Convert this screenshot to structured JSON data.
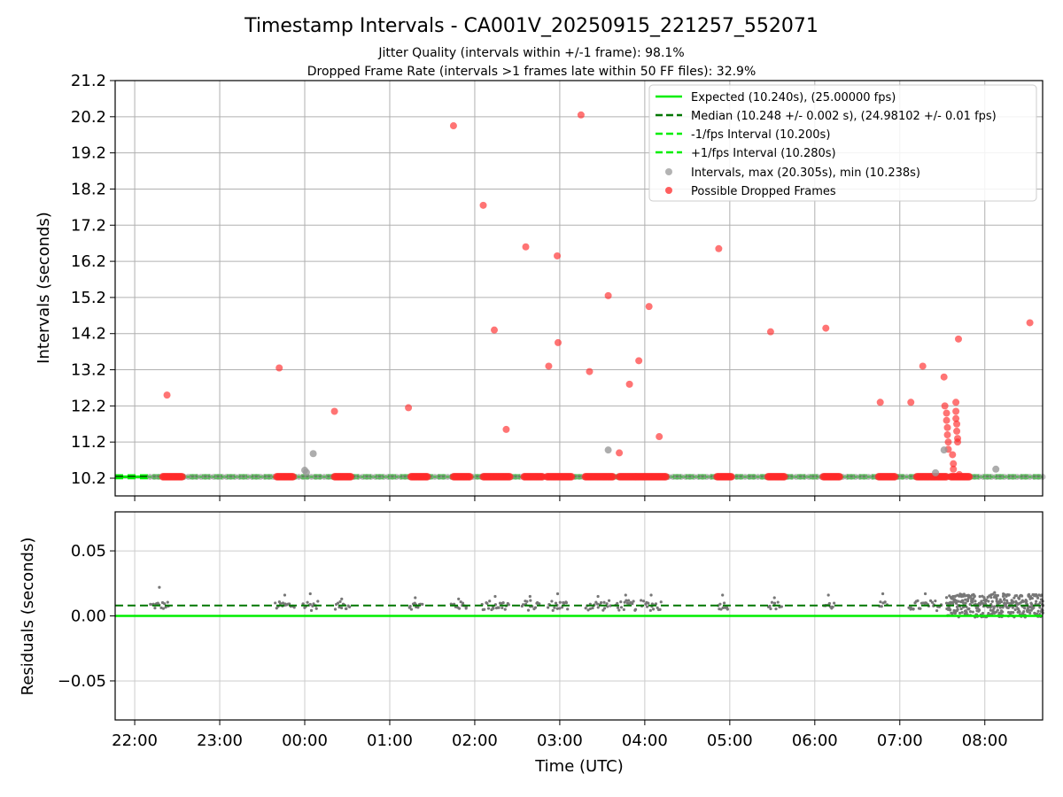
{
  "chart_data": [
    {
      "type": "scatter",
      "title": "Timestamp Intervals - CA001V_20250915_221257_552071",
      "subtitle_lines": [
        "Jitter Quality (intervals within +/-1 frame): 98.1%",
        "Dropped Frame Rate (intervals >1 frames late within 50 FF files): 32.9%"
      ],
      "ylabel": "Intervals (seconds)",
      "ylim": [
        9.71,
        21.2
      ],
      "yticks": [
        "10.2",
        "11.2",
        "12.2",
        "13.2",
        "14.2",
        "15.2",
        "16.2",
        "17.2",
        "18.2",
        "19.2",
        "20.2",
        "21.2"
      ],
      "x_unit": "hours since 00:00 UTC",
      "xlim": [
        -2.23,
        8.68
      ],
      "grid": true,
      "legend_position": "top-right",
      "legend": [
        {
          "label": "Expected (10.240s), (25.00000 fps)",
          "style": "solid",
          "color": "#00ee00"
        },
        {
          "label": "Median (10.248 +/- 0.002 s), (24.98102 +/- 0.01 fps)",
          "style": "dashed",
          "color": "#007700"
        },
        {
          "label": "-1/fps Interval (10.200s)",
          "style": "dashed",
          "color": "#00ee00"
        },
        {
          "label": "+1/fps Interval (10.280s)",
          "style": "dashed",
          "color": "#00ee00"
        },
        {
          "label": "Intervals, max (20.305s), min (10.238s)",
          "style": "marker",
          "color": "#999999"
        },
        {
          "label": "Possible Dropped Frames",
          "style": "marker",
          "color": "#ff2a2a"
        }
      ],
      "lines": {
        "expected": 10.24,
        "median": 10.248,
        "minus_one": 10.2,
        "plus_one": 10.28
      },
      "dense_interval_band": {
        "y": 10.238,
        "x_start": -1.82,
        "x_end": 8.68
      },
      "dropped_frame_clusters": [
        [
          -1.67,
          -1.43
        ],
        [
          -0.33,
          -0.13
        ],
        [
          0.35,
          0.55
        ],
        [
          1.25,
          1.45
        ],
        [
          1.75,
          1.95
        ],
        [
          2.1,
          2.42
        ],
        [
          2.58,
          2.8
        ],
        [
          2.85,
          3.15
        ],
        [
          3.3,
          3.63
        ],
        [
          3.7,
          3.9
        ],
        [
          3.9,
          4.25
        ],
        [
          4.85,
          5.02
        ],
        [
          5.45,
          5.65
        ],
        [
          6.1,
          6.3
        ],
        [
          6.75,
          6.95
        ],
        [
          7.2,
          7.55
        ],
        [
          7.6,
          7.82
        ]
      ],
      "dropped_frames": [
        {
          "x": -1.62,
          "y": 12.5
        },
        {
          "x": -0.3,
          "y": 13.25
        },
        {
          "x": 0.35,
          "y": 12.05
        },
        {
          "x": 1.22,
          "y": 12.15
        },
        {
          "x": 1.75,
          "y": 19.95
        },
        {
          "x": 2.1,
          "y": 17.75
        },
        {
          "x": 2.23,
          "y": 14.3
        },
        {
          "x": 2.37,
          "y": 11.55
        },
        {
          "x": 2.6,
          "y": 16.6
        },
        {
          "x": 2.87,
          "y": 13.3
        },
        {
          "x": 2.97,
          "y": 16.35
        },
        {
          "x": 2.98,
          "y": 13.95
        },
        {
          "x": 3.25,
          "y": 20.25
        },
        {
          "x": 3.35,
          "y": 13.15
        },
        {
          "x": 3.57,
          "y": 15.25
        },
        {
          "x": 3.7,
          "y": 10.9
        },
        {
          "x": 3.82,
          "y": 12.8
        },
        {
          "x": 3.93,
          "y": 13.45
        },
        {
          "x": 4.05,
          "y": 14.95
        },
        {
          "x": 4.17,
          "y": 11.35
        },
        {
          "x": 4.87,
          "y": 16.55
        },
        {
          "x": 5.48,
          "y": 14.25
        },
        {
          "x": 6.13,
          "y": 14.35
        },
        {
          "x": 6.77,
          "y": 12.3
        },
        {
          "x": 7.13,
          "y": 12.3
        },
        {
          "x": 7.27,
          "y": 13.3
        },
        {
          "x": 7.52,
          "y": 13.0
        },
        {
          "x": 7.53,
          "y": 12.2
        },
        {
          "x": 7.55,
          "y": 12.0
        },
        {
          "x": 7.55,
          "y": 11.8
        },
        {
          "x": 7.56,
          "y": 11.6
        },
        {
          "x": 7.56,
          "y": 11.4
        },
        {
          "x": 7.57,
          "y": 11.2
        },
        {
          "x": 7.57,
          "y": 11.0
        },
        {
          "x": 7.62,
          "y": 10.85
        },
        {
          "x": 7.63,
          "y": 10.6
        },
        {
          "x": 7.63,
          "y": 10.45
        },
        {
          "x": 7.66,
          "y": 12.3
        },
        {
          "x": 7.66,
          "y": 12.05
        },
        {
          "x": 7.66,
          "y": 11.85
        },
        {
          "x": 7.67,
          "y": 11.7
        },
        {
          "x": 7.67,
          "y": 11.5
        },
        {
          "x": 7.68,
          "y": 11.3
        },
        {
          "x": 7.68,
          "y": 11.2
        },
        {
          "x": 7.69,
          "y": 14.05
        },
        {
          "x": 7.7,
          "y": 10.3
        },
        {
          "x": 8.53,
          "y": 14.5
        }
      ],
      "interval_outliers": [
        {
          "x": 0.0,
          "y": 10.42
        },
        {
          "x": 0.02,
          "y": 10.36
        },
        {
          "x": 0.1,
          "y": 10.88
        },
        {
          "x": 3.57,
          "y": 10.98
        },
        {
          "x": 7.42,
          "y": 10.35
        },
        {
          "x": 7.52,
          "y": 10.98
        },
        {
          "x": 8.13,
          "y": 10.45
        }
      ]
    },
    {
      "type": "scatter",
      "ylabel": "Residuals (seconds)",
      "xlabel": "Time (UTC)",
      "ylim": [
        -0.08,
        0.08
      ],
      "yticks": [
        "0.05",
        "0.00",
        "−0.05"
      ],
      "ytick_values": [
        0.05,
        0.0,
        -0.05
      ],
      "x_ticks": [
        {
          "label": "22:00",
          "value": -2.0
        },
        {
          "label": "23:00",
          "value": -1.0
        },
        {
          "label": "00:00",
          "value": 0.0
        },
        {
          "label": "01:00",
          "value": 1.0
        },
        {
          "label": "02:00",
          "value": 2.0
        },
        {
          "label": "03:00",
          "value": 3.0
        },
        {
          "label": "04:00",
          "value": 4.0
        },
        {
          "label": "05:00",
          "value": 5.0
        },
        {
          "label": "06:00",
          "value": 6.0
        },
        {
          "label": "07:00",
          "value": 7.0
        },
        {
          "label": "08:00",
          "value": 8.0
        }
      ],
      "grid": true,
      "expected_residual": 0.0,
      "median_residual": 0.008,
      "residual_clusters": [
        {
          "x0": -1.82,
          "x1": -1.6,
          "spread": 0.003,
          "max": 0.022
        },
        {
          "x0": -0.35,
          "x1": -0.12,
          "spread": 0.003,
          "max": 0.016
        },
        {
          "x0": -0.02,
          "x1": 0.15,
          "spread": 0.004,
          "max": 0.017
        },
        {
          "x0": 0.35,
          "x1": 0.52,
          "spread": 0.003,
          "max": 0.013
        },
        {
          "x0": 1.22,
          "x1": 1.38,
          "spread": 0.003,
          "max": 0.014
        },
        {
          "x0": 1.72,
          "x1": 1.9,
          "spread": 0.003,
          "max": 0.013
        },
        {
          "x0": 2.08,
          "x1": 2.4,
          "spread": 0.004,
          "max": 0.015
        },
        {
          "x0": 2.55,
          "x1": 2.75,
          "spread": 0.004,
          "max": 0.015
        },
        {
          "x0": 2.85,
          "x1": 3.1,
          "spread": 0.004,
          "max": 0.017
        },
        {
          "x0": 3.3,
          "x1": 3.6,
          "spread": 0.004,
          "max": 0.015
        },
        {
          "x0": 3.65,
          "x1": 3.9,
          "spread": 0.004,
          "max": 0.016
        },
        {
          "x0": 3.95,
          "x1": 4.2,
          "spread": 0.004,
          "max": 0.016
        },
        {
          "x0": 4.85,
          "x1": 4.98,
          "spread": 0.003,
          "max": 0.016
        },
        {
          "x0": 5.45,
          "x1": 5.6,
          "spread": 0.003,
          "max": 0.014
        },
        {
          "x0": 6.1,
          "x1": 6.22,
          "spread": 0.003,
          "max": 0.016
        },
        {
          "x0": 6.75,
          "x1": 6.85,
          "spread": 0.003,
          "max": 0.017
        },
        {
          "x0": 7.1,
          "x1": 7.5,
          "spread": 0.004,
          "max": 0.017
        },
        {
          "x0": 7.55,
          "x1": 8.68,
          "spread": 0.009,
          "max": 0.018
        }
      ]
    }
  ],
  "colors": {
    "expected": "#00ee00",
    "median": "#007700",
    "intervals": "#999999",
    "dropped": "#ff2a2a",
    "grid": "#b0b0b0"
  }
}
